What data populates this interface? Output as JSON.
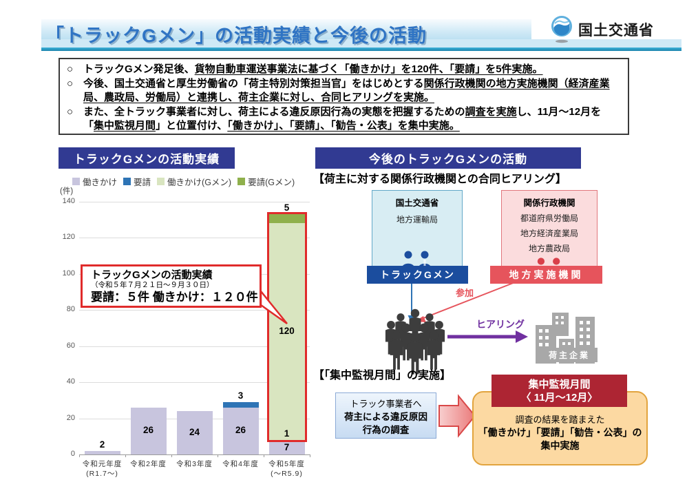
{
  "header": {
    "title": "「トラックGメン」の活動実績と今後の活動",
    "ministry": "国土交通省"
  },
  "notice": {
    "marker": "○",
    "bullets": [
      {
        "segments": [
          {
            "t": "トラックGメン発足後、",
            "u": false
          },
          {
            "t": "貨物自動車運送事業法に基づく「働きかけ」を120件、「要請」を5件実施。",
            "u": true
          }
        ]
      },
      {
        "segments": [
          {
            "t": "今後、国土交通省と厚生労働省の「荷主特別対策担当官」をはじめとする",
            "u": false
          },
          {
            "t": "関係行政機関の地方実施機関（経済産業局、農政局、労働局）と連携し、荷主企業に対し、合同ヒアリングを実施。",
            "u": true
          }
        ]
      },
      {
        "segments": [
          {
            "t": "また、全トラック事業者に対し、荷主による違反原因行為の実態を把握するための",
            "u": false
          },
          {
            "t": "調査を実施",
            "u": true
          },
          {
            "t": "し、11月～12月を「",
            "u": false
          },
          {
            "t": "集中監視月間",
            "u": true
          },
          {
            "t": "」と位置付け、",
            "u": false
          },
          {
            "t": "「働きかけ」、「要請」、「勧告・公表」を集中実施。",
            "u": true
          }
        ]
      }
    ]
  },
  "left_panel": {
    "header_label": "トラックGメンの活動実績",
    "unit_label": "(件)",
    "annotation": {
      "line1": "トラックGメンの活動実績",
      "line2": "（令和５年７月２１日～９月３０日）",
      "line3": "要請：５件 働きかけ：１２０件"
    },
    "chart_data": {
      "type": "bar",
      "stacked": true,
      "categories": [
        [
          "令和元年度",
          "(R1.7～)"
        ],
        [
          "令和2年度"
        ],
        [
          "令和3年度"
        ],
        [
          "令和4年度"
        ],
        [
          "令和5年度",
          "(～R5.9)"
        ]
      ],
      "series": [
        {
          "name": "働きかけ",
          "color": "#c8c5de",
          "values": [
            2,
            26,
            24,
            26,
            7
          ]
        },
        {
          "name": "要請",
          "color": "#2e74b5",
          "values": [
            0,
            0,
            0,
            3,
            1
          ]
        },
        {
          "name": "働きかけ(Gメン)",
          "color": "#d9e5c0",
          "values": [
            0,
            0,
            0,
            0,
            120
          ]
        },
        {
          "name": "要請(Gメン)",
          "color": "#8fb04c",
          "values": [
            0,
            0,
            0,
            0,
            5
          ]
        }
      ],
      "ylabel": "(件)",
      "ylim": [
        0,
        140
      ],
      "ytick_step": 20,
      "grid": true,
      "legend_position": "top",
      "highlight": {
        "category_index": 4,
        "series_from": 2,
        "series_to": 3,
        "color": "#e02b2b"
      }
    }
  },
  "right_panel": {
    "header_label": "今後のトラックGメンの活動",
    "hearing": {
      "caption": "【荷主に対する関係行政機関との合同ヒアリング】",
      "mlit_box": {
        "title": "国土交通省",
        "sub": "地方運輸局",
        "tag": "トラックGメン"
      },
      "agency_box": {
        "title": "関係行政機関",
        "items": [
          "都道府県労働局",
          "地方経済産業局",
          "地方農政局"
        ],
        "tag": "地方実施機関"
      },
      "participate_label": "参加",
      "hearing_label": "ヒアリング",
      "shipper_label": "荷主企業"
    },
    "monitoring": {
      "caption": "【「集中監視月間」の実施】",
      "survey_box": {
        "line1": "トラック事業者へ",
        "line2": "荷主による違反原因",
        "line3": "行為の調査"
      },
      "period_box": {
        "title_line1": "集中監視月間",
        "title_line2": "〈 11月～12月〉",
        "body_line1": "調査の結果を踏まえた",
        "body_line2": "「働きかけ」「要請」「勧告・公表」の",
        "body_line3": "集中実施"
      }
    }
  },
  "accent_colors": {
    "navy_header": "#313a92",
    "gmen_blue": "#1b4d9e",
    "local_red": "#e6545c",
    "hearing_purple": "#7030a0",
    "alert_red": "#ad2533",
    "orange_border": "#e2a43e",
    "highlight_red": "#e02b2b"
  }
}
